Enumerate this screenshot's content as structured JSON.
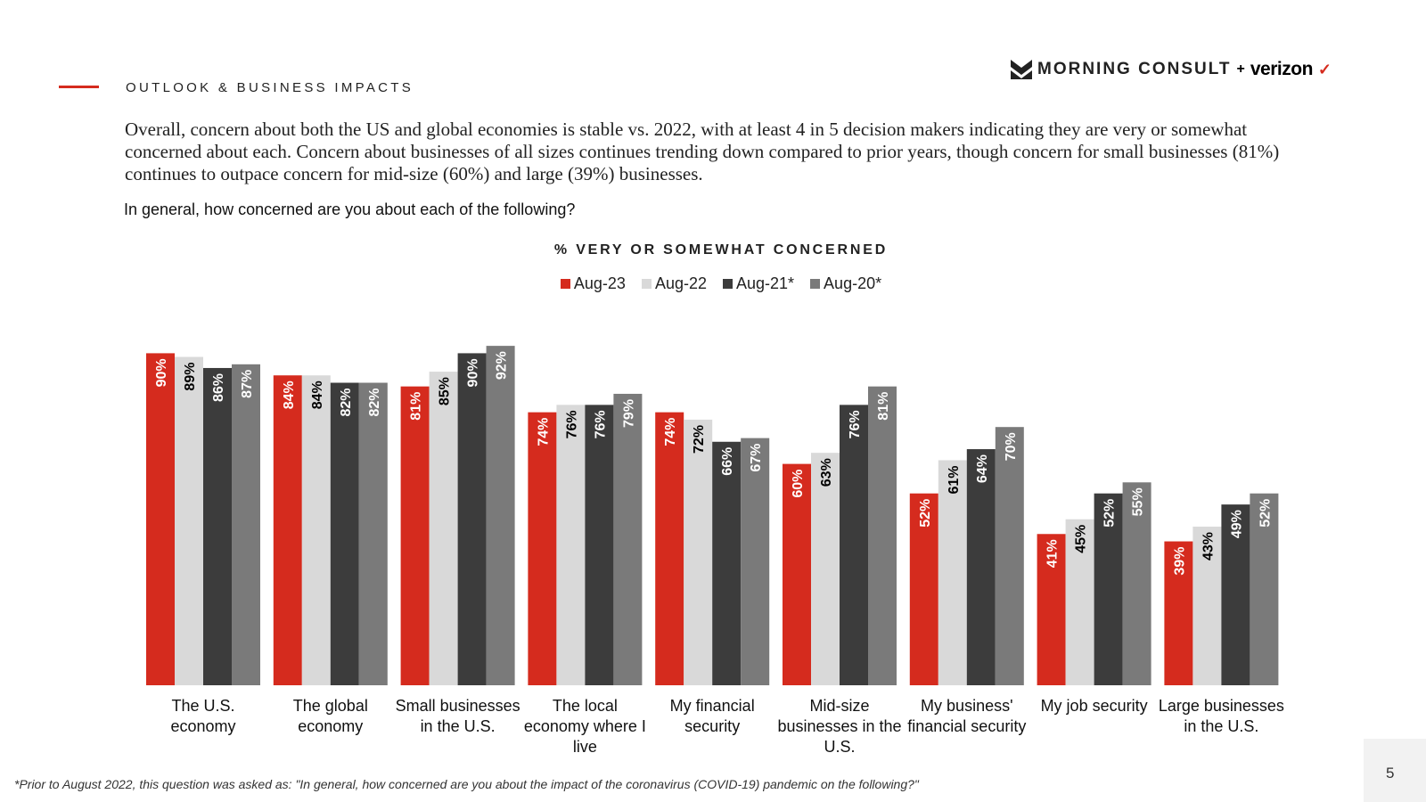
{
  "header": {
    "section": "OUTLOOK & BUSINESS IMPACTS",
    "logo_text": "MORNING CONSULT",
    "logo_plus": "+",
    "logo_partner": "verizon"
  },
  "intro": "Overall, concern about both the US and global economies is stable vs. 2022, with at least 4 in 5 decision makers indicating they are very or somewhat concerned about each. Concern about businesses of all sizes continues trending down compared to prior years, though concern for small businesses (81%) continues to outpace concern for mid-size (60%) and large (39%) businesses.",
  "question": "In general, how concerned are you about each of the following?",
  "footnote": "*Prior to August 2022, this question was asked as: \"In general, how concerned are you about the impact of the coronavirus (COVID-19) pandemic on the following?\"",
  "page_number": "5",
  "chart_data": {
    "type": "bar",
    "title": "% VERY OR SOMEWHAT CONCERNED",
    "legend_position": "top-center",
    "ylim": [
      0,
      100
    ],
    "categories": [
      "The U.S. economy",
      "The global economy",
      "Small businesses in the U.S.",
      "The local economy where I live",
      "My financial security",
      "Mid-size businesses in the U.S.",
      "My business' financial security",
      "My job security",
      "Large businesses in the U.S."
    ],
    "series": [
      {
        "name": "Aug-23",
        "color": "#d52b1e",
        "label_color": "#ffffff",
        "values": [
          90,
          84,
          81,
          74,
          74,
          60,
          52,
          41,
          39
        ]
      },
      {
        "name": "Aug-22",
        "color": "#d9d9d9",
        "label_color": "#000000",
        "values": [
          89,
          84,
          85,
          76,
          72,
          63,
          61,
          45,
          43
        ]
      },
      {
        "name": "Aug-21*",
        "color": "#3c3c3c",
        "label_color": "#ffffff",
        "values": [
          86,
          82,
          90,
          76,
          66,
          76,
          64,
          52,
          49
        ]
      },
      {
        "name": "Aug-20*",
        "color": "#7a7a7a",
        "label_color": "#ffffff",
        "values": [
          87,
          82,
          92,
          79,
          67,
          81,
          70,
          55,
          52
        ]
      }
    ]
  }
}
